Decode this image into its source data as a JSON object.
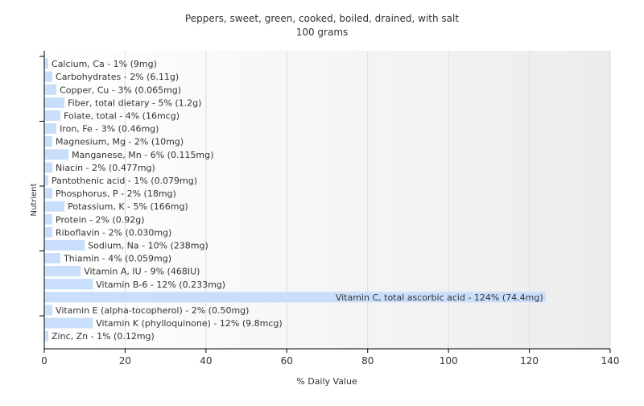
{
  "chart_data": {
    "type": "bar",
    "orientation": "horizontal",
    "title": "Peppers, sweet, green, cooked, boiled, drained, with salt",
    "subtitle": "100 grams",
    "xlabel": "% Daily Value",
    "ylabel": "Nutrient",
    "xlim": [
      0,
      140
    ],
    "x_ticks": [
      0,
      20,
      40,
      60,
      80,
      100,
      120,
      140
    ],
    "grid": true,
    "legend": "none",
    "bar_color": "#c9defa",
    "categories": [
      "Calcium, Ca",
      "Carbohydrates",
      "Copper, Cu",
      "Fiber, total dietary",
      "Folate, total",
      "Iron, Fe",
      "Magnesium, Mg",
      "Manganese, Mn",
      "Niacin",
      "Pantothenic acid",
      "Phosphorus, P",
      "Potassium, K",
      "Protein",
      "Riboflavin",
      "Sodium, Na",
      "Thiamin",
      "Vitamin A, IU",
      "Vitamin B-6",
      "Vitamin C, total ascorbic acid",
      "Vitamin E (alpha-tocopherol)",
      "Vitamin K (phylloquinone)",
      "Zinc, Zn"
    ],
    "values": [
      1,
      2,
      3,
      5,
      4,
      3,
      2,
      6,
      2,
      1,
      2,
      5,
      2,
      2,
      10,
      4,
      9,
      12,
      124,
      2,
      12,
      1
    ],
    "labels": [
      "Calcium, Ca - 1% (9mg)",
      "Carbohydrates - 2% (6.11g)",
      "Copper, Cu - 3% (0.065mg)",
      "Fiber, total dietary - 5% (1.2g)",
      "Folate, total - 4% (16mcg)",
      "Iron, Fe - 3% (0.46mg)",
      "Magnesium, Mg - 2% (10mg)",
      "Manganese, Mn - 6% (0.115mg)",
      "Niacin - 2% (0.477mg)",
      "Pantothenic acid - 1% (0.079mg)",
      "Phosphorus, P - 2% (18mg)",
      "Potassium, K - 5% (166mg)",
      "Protein - 2% (0.92g)",
      "Riboflavin - 2% (0.030mg)",
      "Sodium, Na - 10% (238mg)",
      "Thiamin - 4% (0.059mg)",
      "Vitamin A, IU - 9% (468IU)",
      "Vitamin B-6 - 12% (0.233mg)",
      "Vitamin C, total ascorbic acid - 124% (74.4mg)",
      "Vitamin E (alpha-tocopherol) - 2% (0.50mg)",
      "Vitamin K (phylloquinone) - 12% (9.8mcg)",
      "Zinc, Zn - 1% (0.12mg)"
    ]
  }
}
